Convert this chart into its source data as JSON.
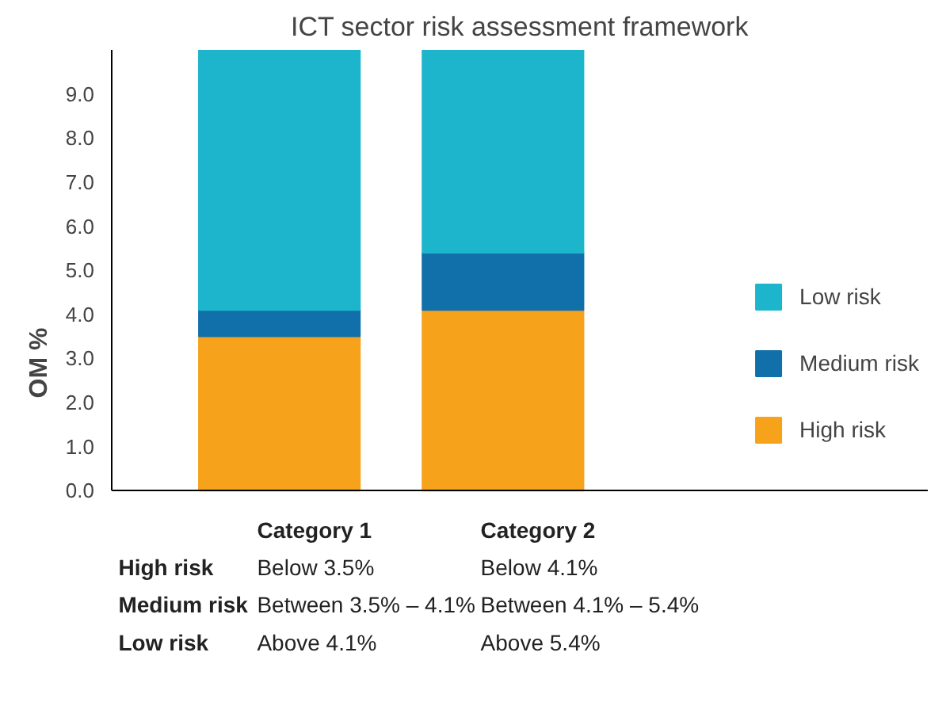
{
  "chart_data": {
    "type": "bar",
    "title": "ICT sector risk assessment framework",
    "ylabel": "OM %",
    "categories": [
      "Category 1",
      "Category 2"
    ],
    "stacked": true,
    "series": [
      {
        "name": "High risk",
        "color": "#f7a21b",
        "values": [
          3.5,
          4.1
        ]
      },
      {
        "name": "Medium risk",
        "color": "#1170aa",
        "values": [
          0.6,
          1.3
        ]
      },
      {
        "name": "Low risk",
        "color": "#1cb5cc",
        "values": [
          5.9,
          4.6
        ]
      }
    ],
    "ylim": [
      0,
      10
    ],
    "yticks": [
      {
        "value": 0,
        "label": "0.0"
      },
      {
        "value": 1,
        "label": "1.0"
      },
      {
        "value": 2,
        "label": "2.0"
      },
      {
        "value": 3,
        "label": "3.0"
      },
      {
        "value": 4,
        "label": "4.0"
      },
      {
        "value": 5,
        "label": "5.0"
      },
      {
        "value": 6,
        "label": "6.0"
      },
      {
        "value": 7,
        "label": "7.0"
      },
      {
        "value": 8,
        "label": "8.0"
      },
      {
        "value": 9,
        "label": "9.0"
      }
    ],
    "grid": false,
    "legend": "right",
    "tick_labels": "y",
    "annotations": [
      "High risk",
      "Below 3.5%",
      "Below 4.1%",
      "Medium risk",
      "Between 3.5% – 4.1%",
      "Between 4.1% – 5.4%",
      "Low risk",
      "Above 4.1%",
      "Above 5.4%"
    ]
  }
}
